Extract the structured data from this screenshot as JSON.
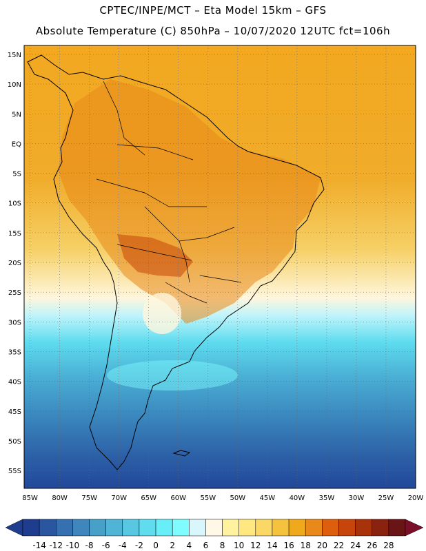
{
  "header": {
    "line1": "CPTEC/INPE/MCT –  Eta Model 15km – GFS",
    "line2": "Absolute Temperature (C) 850hPa – 10/07/2020 12UTC fct=106h"
  },
  "map": {
    "lat_labels": [
      "15N",
      "10N",
      "5N",
      "EQ",
      "5S",
      "10S",
      "15S",
      "20S",
      "25S",
      "30S",
      "35S",
      "40S",
      "45S",
      "50S",
      "55S"
    ],
    "lat_values": [
      15,
      10,
      5,
      0,
      -5,
      -10,
      -15,
      -20,
      -25,
      -30,
      -35,
      -40,
      -45,
      -50,
      -55
    ],
    "lon_labels": [
      "85W",
      "80W",
      "75W",
      "70W",
      "65W",
      "60W",
      "55W",
      "50W",
      "45W",
      "40W",
      "35W",
      "30W",
      "25W",
      "20W"
    ],
    "lon_values": [
      -85,
      -80,
      -75,
      -70,
      -65,
      -60,
      -55,
      -50,
      -45,
      -40,
      -35,
      -30,
      -25,
      -20
    ],
    "lat_range": [
      -58,
      16.5
    ],
    "lon_range": [
      -86,
      -20
    ]
  },
  "colorbar": {
    "labels": [
      "-14",
      "-12",
      "-10",
      "-8",
      "-6",
      "-4",
      "-2",
      "0",
      "2",
      "4",
      "6",
      "8",
      "10",
      "12",
      "14",
      "16",
      "18",
      "20",
      "22",
      "24",
      "26",
      "28"
    ],
    "colors": [
      "#1f3d8f",
      "#2a56a0",
      "#3570b0",
      "#3f86bd",
      "#47a0c8",
      "#50b4d6",
      "#58c8e2",
      "#5fdcee",
      "#68eef6",
      "#7ffcff",
      "#d8f6fb",
      "#fff8e6",
      "#fff3a0",
      "#ffe880",
      "#fbd866",
      "#f5c23e",
      "#efa91c",
      "#e8891a",
      "#dd5e0c",
      "#c7450a",
      "#a8320a",
      "#8a2210",
      "#6a1515"
    ]
  }
}
